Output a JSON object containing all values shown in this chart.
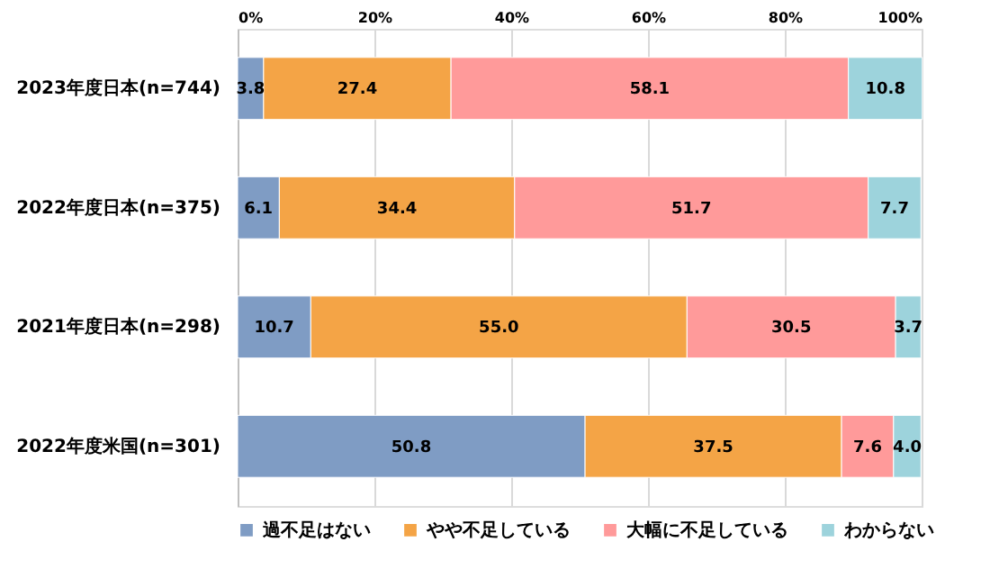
{
  "chart_data": {
    "type": "bar",
    "orientation": "horizontal",
    "stacked": true,
    "grid": "x",
    "legend": "bottom",
    "categories": [
      "2023年度日本(n=744)",
      "2022年度日本(n=375)",
      "2021年度日本(n=298)",
      "2022年度米国(n=301)"
    ],
    "series": [
      {
        "name": "過不足はない",
        "color": "#7f9cc4",
        "values": [
          3.8,
          6.1,
          10.7,
          50.8
        ],
        "value_labels": [
          "3.8",
          "6.1",
          "10.7",
          "50.8"
        ]
      },
      {
        "name": "やや不足している",
        "color": "#f4a446",
        "values": [
          27.4,
          34.4,
          55.0,
          37.5
        ],
        "value_labels": [
          "27.4",
          "34.4",
          "55.0",
          "37.5"
        ]
      },
      {
        "name": "大幅に不足している",
        "color": "#ff9a9a",
        "values": [
          58.1,
          51.7,
          30.5,
          7.6
        ],
        "value_labels": [
          "58.1",
          "51.7",
          "30.5",
          "7.6"
        ]
      },
      {
        "name": "わからない",
        "color": "#9dd3dc",
        "values": [
          10.8,
          7.7,
          3.7,
          4.0
        ],
        "value_labels": [
          "10.8",
          "7.7",
          "3.7",
          "4.0"
        ]
      }
    ],
    "xlim": [
      0,
      100
    ],
    "xticks": [
      {
        "value": 0,
        "label": "0%"
      },
      {
        "value": 20,
        "label": "20%"
      },
      {
        "value": 40,
        "label": "40%"
      },
      {
        "value": 60,
        "label": "60%"
      },
      {
        "value": 80,
        "label": "80%"
      },
      {
        "value": 100,
        "label": "100%"
      }
    ]
  }
}
